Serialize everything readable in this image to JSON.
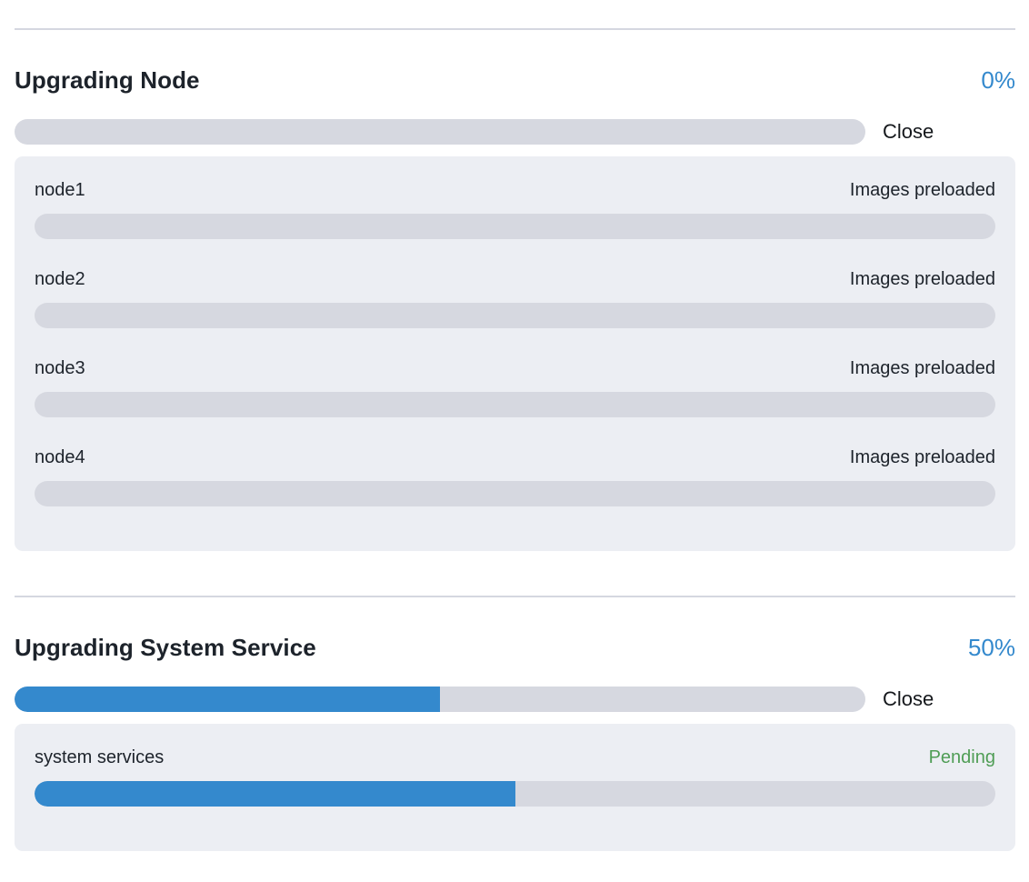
{
  "colors": {
    "accent_blue": "#3489cd",
    "track_gray": "#d6d8e0",
    "panel_background": "#eceef3",
    "divider_gray": "#d5d7e0",
    "text_dark": "#1d232b",
    "status_green": "#4f9d55"
  },
  "sections": [
    {
      "title": "Upgrading Node",
      "percent_label": "0%",
      "percent_value": 0,
      "close_label": "Close",
      "rows": [
        {
          "name": "node1",
          "status": "Images preloaded",
          "progress": 0
        },
        {
          "name": "node2",
          "status": "Images preloaded",
          "progress": 0
        },
        {
          "name": "node3",
          "status": "Images preloaded",
          "progress": 0
        },
        {
          "name": "node4",
          "status": "Images preloaded",
          "progress": 0
        }
      ]
    },
    {
      "title": "Upgrading System Service",
      "percent_label": "50%",
      "percent_value": 50,
      "close_label": "Close",
      "rows": [
        {
          "name": "system services",
          "status": "Pending",
          "progress": 50
        }
      ]
    }
  ]
}
